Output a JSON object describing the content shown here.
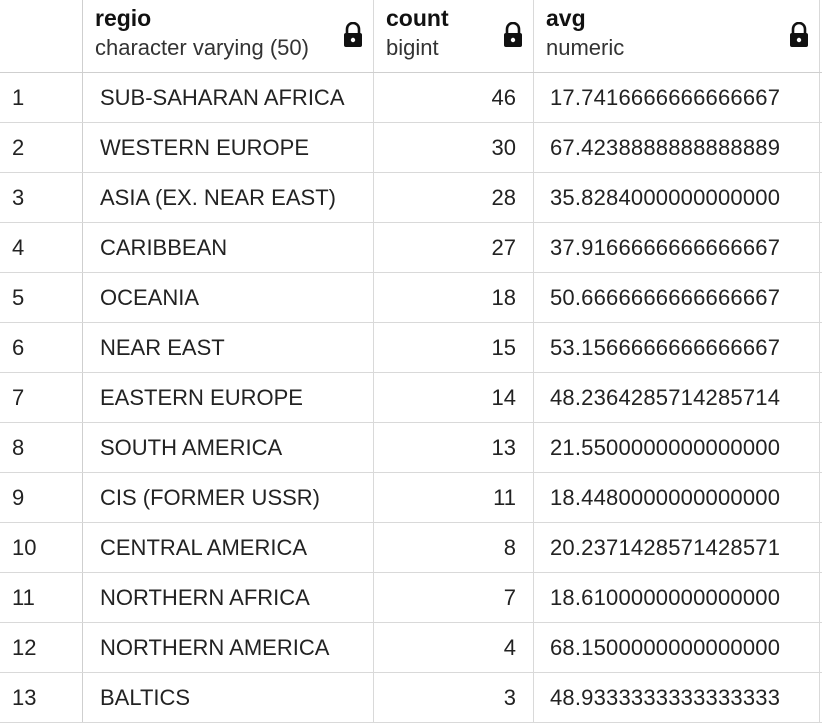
{
  "columns": [
    {
      "name": "regio",
      "type": "character varying (50)"
    },
    {
      "name": "count",
      "type": "bigint"
    },
    {
      "name": "avg",
      "type": "numeric"
    }
  ],
  "icons": {
    "lock": "lock-icon"
  },
  "rows": [
    {
      "n": "1",
      "regio": "SUB-SAHARAN AFRICA",
      "count": "46",
      "avg": "17.7416666666666667"
    },
    {
      "n": "2",
      "regio": "WESTERN EUROPE",
      "count": "30",
      "avg": "67.4238888888888889"
    },
    {
      "n": "3",
      "regio": "ASIA (EX. NEAR EAST)",
      "count": "28",
      "avg": "35.8284000000000000"
    },
    {
      "n": "4",
      "regio": "CARIBBEAN",
      "count": "27",
      "avg": "37.9166666666666667"
    },
    {
      "n": "5",
      "regio": "OCEANIA",
      "count": "18",
      "avg": "50.6666666666666667"
    },
    {
      "n": "6",
      "regio": "NEAR EAST",
      "count": "15",
      "avg": "53.1566666666666667"
    },
    {
      "n": "7",
      "regio": "EASTERN EUROPE",
      "count": "14",
      "avg": "48.2364285714285714"
    },
    {
      "n": "8",
      "regio": "SOUTH AMERICA",
      "count": "13",
      "avg": "21.5500000000000000"
    },
    {
      "n": "9",
      "regio": "CIS (FORMER USSR)",
      "count": "11",
      "avg": "18.4480000000000000"
    },
    {
      "n": "10",
      "regio": "CENTRAL AMERICA",
      "count": "8",
      "avg": "20.2371428571428571"
    },
    {
      "n": "11",
      "regio": "NORTHERN AFRICA",
      "count": "7",
      "avg": "18.6100000000000000"
    },
    {
      "n": "12",
      "regio": "NORTHERN AMERICA",
      "count": "4",
      "avg": "68.1500000000000000"
    },
    {
      "n": "13",
      "regio": "BALTICS",
      "count": "3",
      "avg": "48.9333333333333333"
    }
  ]
}
